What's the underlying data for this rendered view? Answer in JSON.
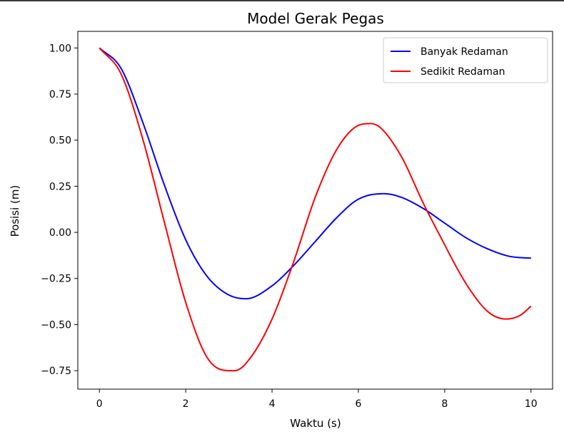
{
  "chart_data": {
    "type": "line",
    "title": "Model Gerak Pegas",
    "xlabel": "Waktu (s)",
    "ylabel": "Posisi (m)",
    "xlim": [
      -0.5,
      10.5
    ],
    "ylim": [
      -0.85,
      1.09
    ],
    "xticks": [
      0,
      2,
      4,
      6,
      8,
      10
    ],
    "xtick_labels": [
      "0",
      "2",
      "4",
      "6",
      "8",
      "10"
    ],
    "yticks": [
      -0.75,
      -0.5,
      -0.25,
      0.0,
      0.25,
      0.5,
      0.75,
      1.0
    ],
    "ytick_labels": [
      "−0.75",
      "−0.50",
      "−0.25",
      "0.00",
      "0.25",
      "0.50",
      "0.75",
      "1.00"
    ],
    "grid": false,
    "legend_position": "upper right",
    "series": [
      {
        "name": "Banyak Redaman",
        "color": "#0000ff",
        "x": [
          0,
          0.5,
          1.0,
          1.5,
          2.0,
          2.5,
          3.0,
          3.4,
          4.0,
          4.5,
          5.0,
          5.5,
          6.0,
          6.6,
          7.0,
          7.5,
          8.0,
          8.5,
          9.0,
          9.5,
          10.0
        ],
        "y": [
          1.0,
          0.89,
          0.6,
          0.26,
          -0.04,
          -0.24,
          -0.34,
          -0.36,
          -0.29,
          -0.18,
          -0.05,
          0.08,
          0.18,
          0.21,
          0.19,
          0.13,
          0.05,
          -0.03,
          -0.09,
          -0.13,
          -0.14
        ]
      },
      {
        "name": "Sedikit Redaman",
        "color": "#ff0000",
        "x": [
          0,
          0.5,
          1.0,
          1.5,
          2.0,
          2.5,
          3.0,
          3.14,
          3.5,
          4.0,
          4.5,
          5.0,
          5.5,
          6.0,
          6.28,
          6.5,
          7.0,
          7.5,
          7.85,
          8.5,
          9.0,
          9.42,
          9.75,
          10.0
        ],
        "y": [
          1.0,
          0.86,
          0.51,
          0.06,
          -0.38,
          -0.68,
          -0.75,
          -0.75,
          -0.68,
          -0.47,
          -0.16,
          0.19,
          0.45,
          0.58,
          0.59,
          0.57,
          0.41,
          0.16,
          0.0,
          -0.28,
          -0.43,
          -0.47,
          -0.45,
          -0.4
        ]
      }
    ]
  }
}
